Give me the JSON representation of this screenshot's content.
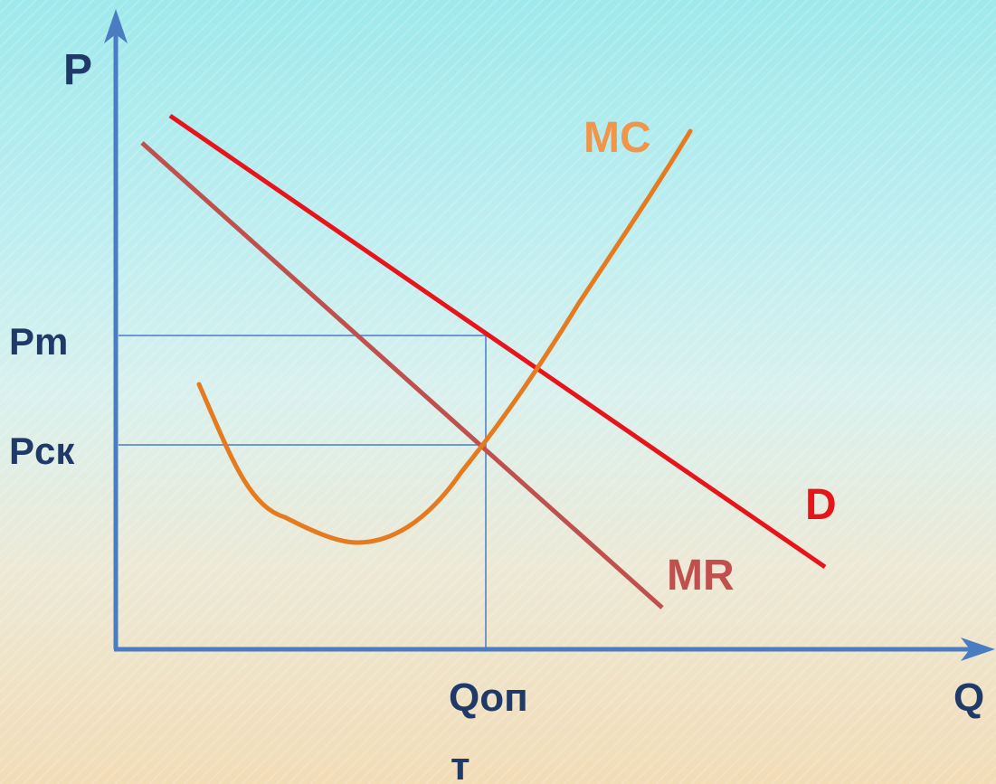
{
  "axes": {
    "y_label": "P",
    "x_label": "Q",
    "y_ticks": [
      {
        "key": "pm",
        "label": "Pm"
      },
      {
        "key": "pck",
        "label": "Рск"
      }
    ],
    "x_ticks": [
      {
        "key": "qopt",
        "label_line1": "Qоп",
        "label_line2": "т"
      }
    ]
  },
  "curves": {
    "mc": {
      "label": "MC",
      "color": "#e57a1e",
      "label_color": "#f0954a"
    },
    "d": {
      "label": "D",
      "color": "#e8141c",
      "label_color": "#e8141c"
    },
    "mr": {
      "label": "MR",
      "color": "#c0504d",
      "label_color": "#c0504d"
    }
  },
  "axis_color": "#4a7cc2",
  "guide_color": "#4a7cc2"
}
